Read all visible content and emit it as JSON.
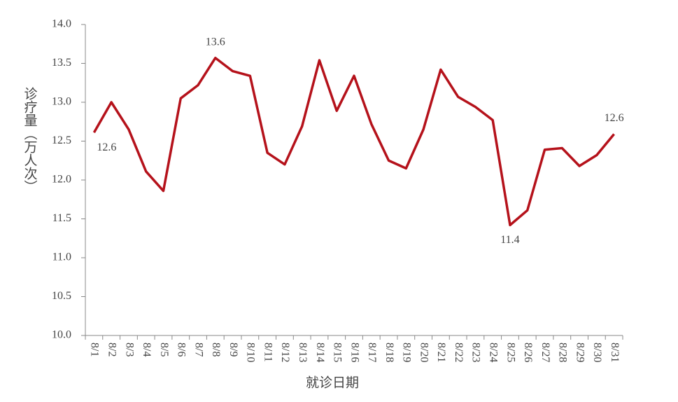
{
  "chart_data": {
    "type": "line",
    "x_label": "就诊日期",
    "y_label": "诊疗量（万人次）",
    "categories": [
      "8/1",
      "8/2",
      "8/3",
      "8/4",
      "8/5",
      "8/6",
      "8/7",
      "8/8",
      "8/9",
      "8/10",
      "8/11",
      "8/12",
      "8/13",
      "8/14",
      "8/15",
      "8/16",
      "8/17",
      "8/18",
      "8/19",
      "8/20",
      "8/21",
      "8/22",
      "8/23",
      "8/24",
      "8/25",
      "8/26",
      "8/27",
      "8/28",
      "8/29",
      "8/30",
      "8/31"
    ],
    "values": [
      12.61,
      13.0,
      12.65,
      12.11,
      11.86,
      13.05,
      13.22,
      13.57,
      13.4,
      13.34,
      12.35,
      12.2,
      12.69,
      13.54,
      12.89,
      13.34,
      12.72,
      12.25,
      12.15,
      12.65,
      13.42,
      13.07,
      12.94,
      12.77,
      11.42,
      11.61,
      12.39,
      12.41,
      12.18,
      12.32,
      12.59
    ],
    "value_labels": [
      "12.6",
      null,
      null,
      null,
      null,
      null,
      null,
      "13.6",
      null,
      null,
      null,
      null,
      null,
      null,
      null,
      null,
      null,
      null,
      null,
      null,
      null,
      null,
      null,
      null,
      "11.4",
      null,
      null,
      null,
      null,
      null,
      "12.6"
    ],
    "color": "#b5121b",
    "ylim": [
      10,
      14
    ],
    "yticks": [
      {
        "value": 10,
        "label": "10.0"
      },
      {
        "value": 10.5,
        "label": "10.5"
      },
      {
        "value": 11,
        "label": "11.0"
      },
      {
        "value": 11.5,
        "label": "11.5"
      },
      {
        "value": 12,
        "label": "12.0"
      },
      {
        "value": 12.5,
        "label": "12.5"
      },
      {
        "value": 13,
        "label": "13.0"
      },
      {
        "value": 13.5,
        "label": "13.5"
      },
      {
        "value": 14,
        "label": "14.0"
      }
    ],
    "grid": false
  }
}
